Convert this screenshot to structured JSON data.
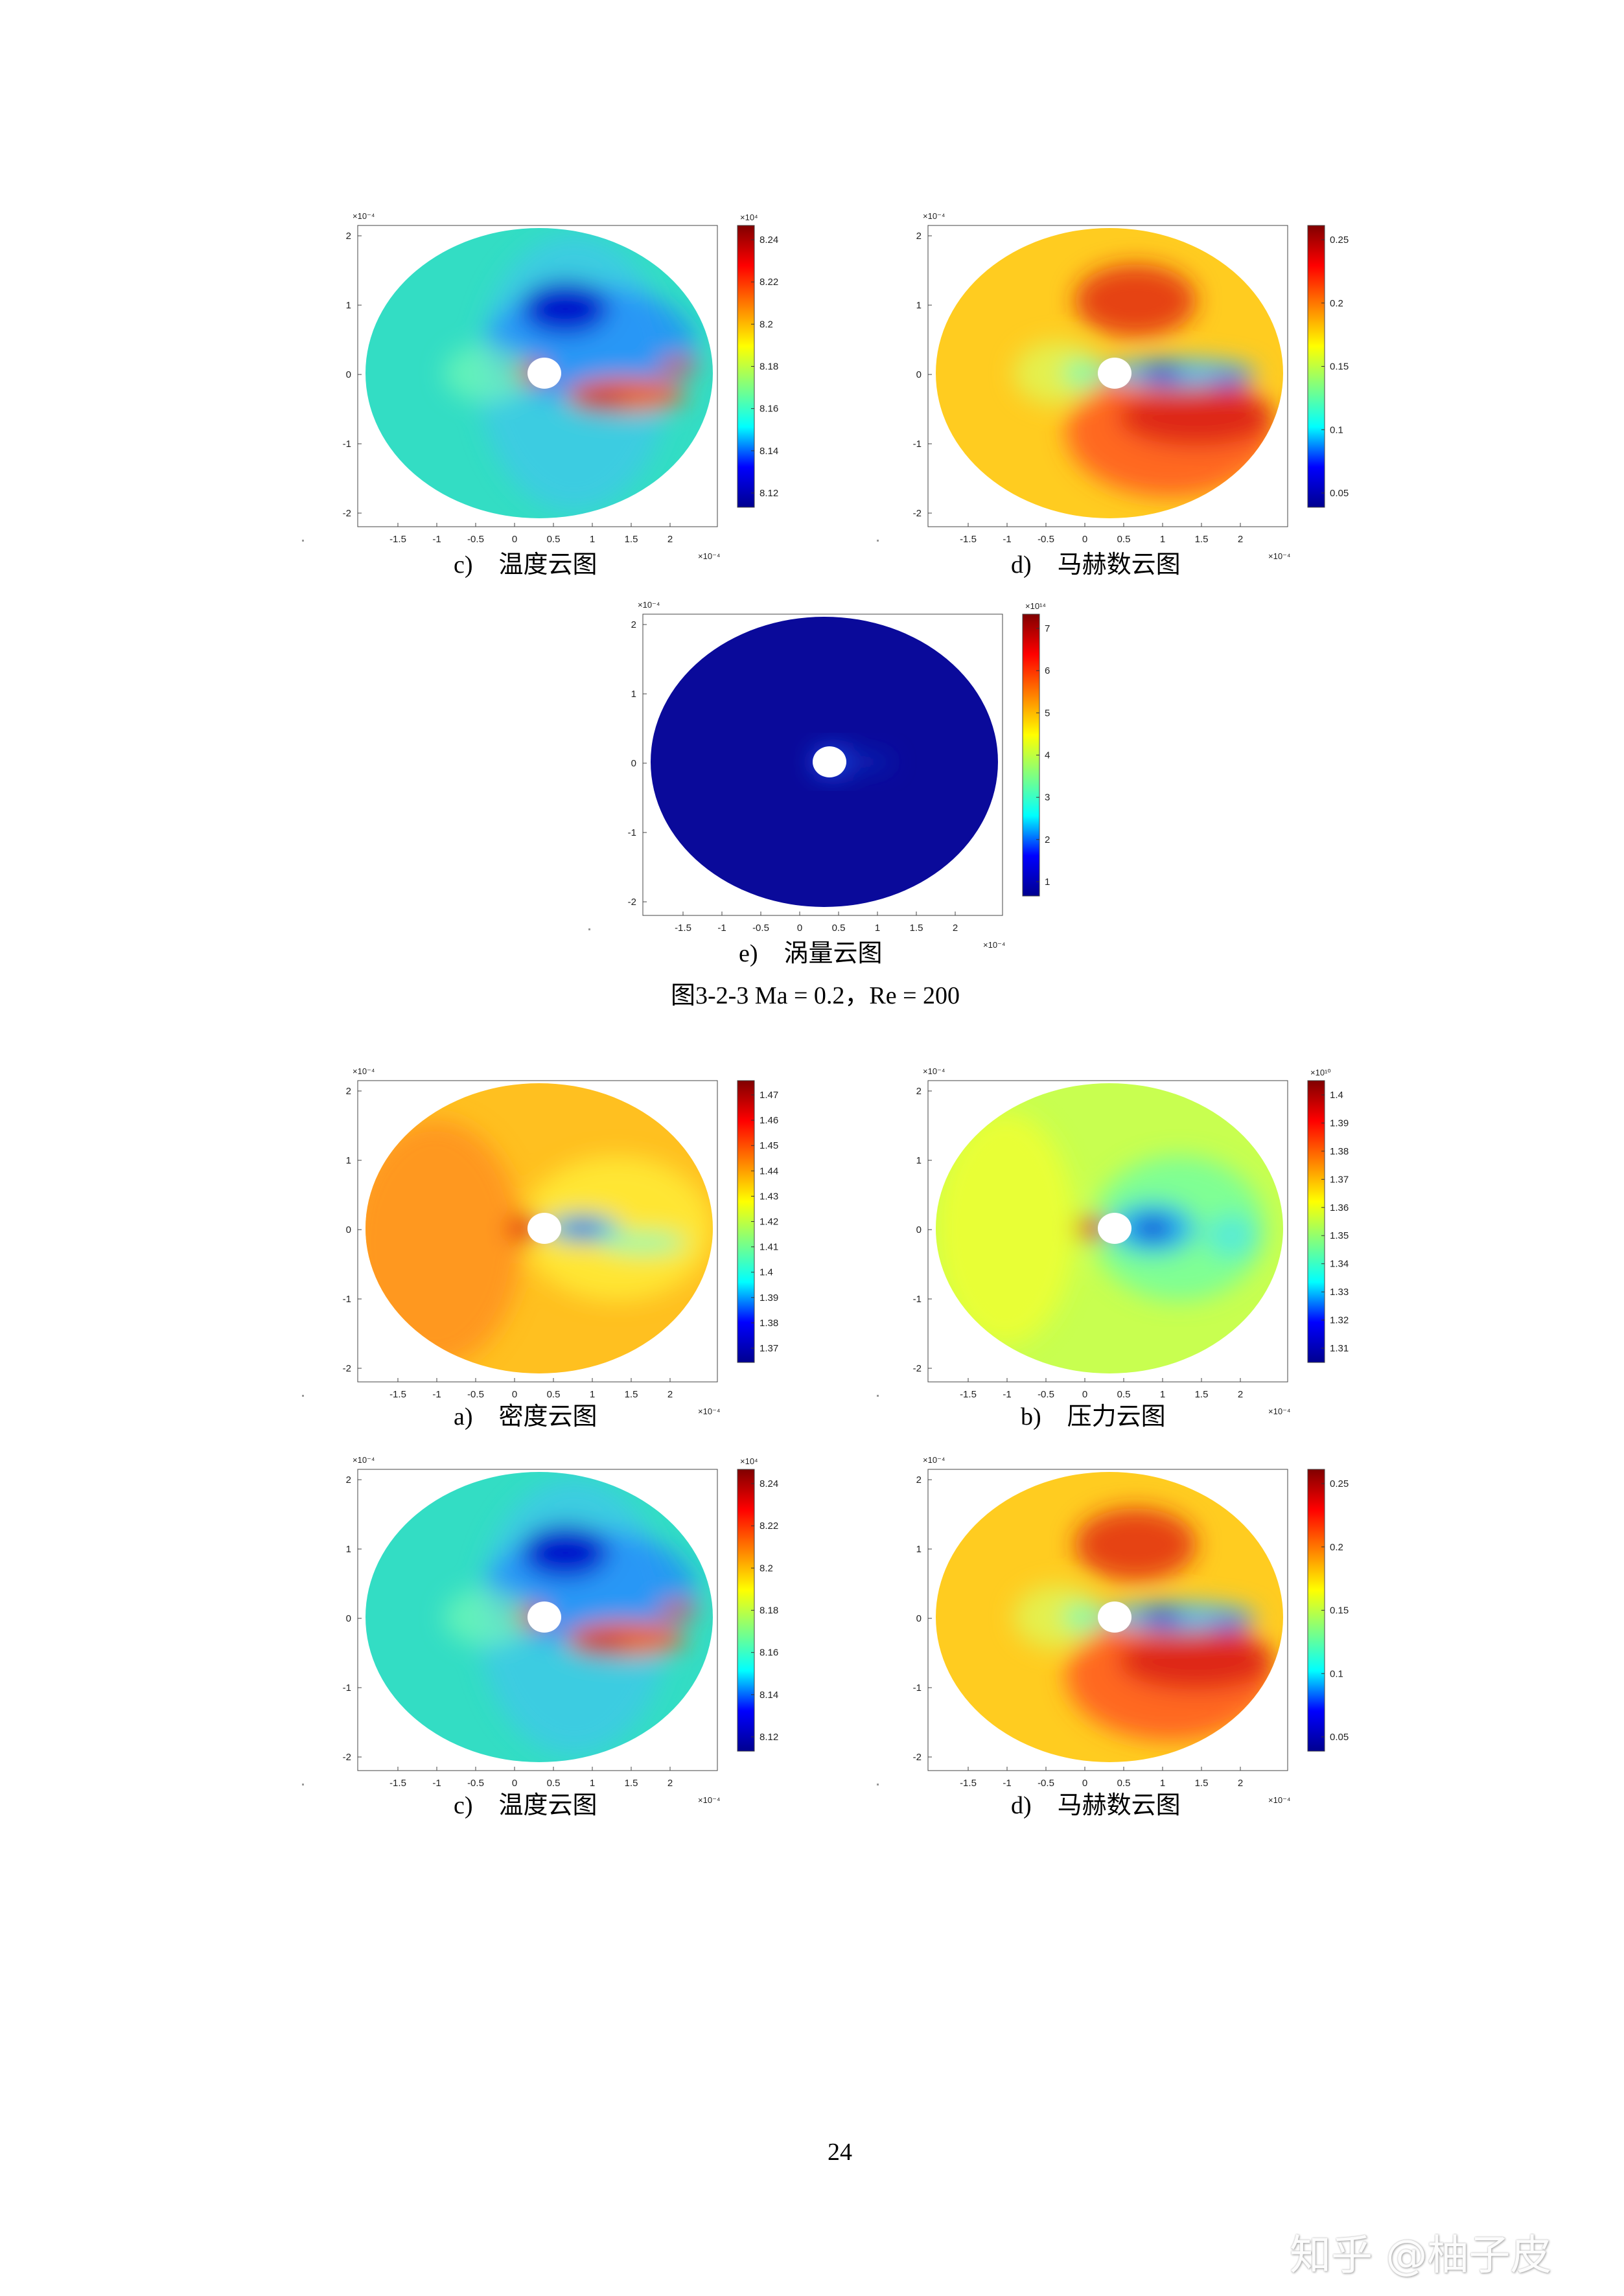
{
  "colors": {
    "jet": [
      "#00008f",
      "#0000ff",
      "#00ffff",
      "#80ff80",
      "#ffff00",
      "#ff8000",
      "#ff0000",
      "#800000"
    ]
  },
  "axis": {
    "x_ticks": [
      "-1.5",
      "-1",
      "-0.5",
      "0",
      "0.5",
      "1",
      "1.5",
      "2"
    ],
    "y_ticks": [
      "2",
      "1",
      "0",
      "-1",
      "-2"
    ],
    "x_exp": "×10⁻⁴",
    "y_exp": "×10⁻⁴"
  },
  "panels": [
    {
      "id": "temp-top",
      "caption_label": "c)",
      "caption_text": "温度云图",
      "colorbar_exp": "×10⁴",
      "colorbar_ticks": [
        "8.24",
        "8.22",
        "8.2",
        "8.18",
        "8.16",
        "8.14",
        "8.12"
      ],
      "field": "temperature"
    },
    {
      "id": "mach-top",
      "caption_label": "d)",
      "caption_text": "马赫数云图",
      "colorbar_exp": "",
      "colorbar_ticks": [
        "0.25",
        "0.2",
        "0.15",
        "0.1",
        "0.05"
      ],
      "field": "mach"
    },
    {
      "id": "vorticity",
      "caption_label": "e)",
      "caption_text": "涡量云图",
      "colorbar_exp": "×10¹⁴",
      "colorbar_ticks": [
        "7",
        "6",
        "5",
        "4",
        "3",
        "2",
        "1"
      ],
      "field": "vorticity"
    },
    {
      "id": "density",
      "caption_label": "a)",
      "caption_text": "密度云图",
      "colorbar_exp": "",
      "colorbar_ticks": [
        "1.47",
        "1.46",
        "1.45",
        "1.44",
        "1.43",
        "1.42",
        "1.41",
        "1.4",
        "1.39",
        "1.38",
        "1.37"
      ],
      "field": "density"
    },
    {
      "id": "pressure",
      "caption_label": "b)",
      "caption_text": "压力云图",
      "colorbar_exp": "×10¹⁰",
      "colorbar_ticks": [
        "1.4",
        "1.39",
        "1.38",
        "1.37",
        "1.36",
        "1.35",
        "1.34",
        "1.33",
        "1.32",
        "1.31"
      ],
      "field": "pressure"
    },
    {
      "id": "temp-bottom",
      "caption_label": "c)",
      "caption_text": "温度云图",
      "colorbar_exp": "×10⁴",
      "colorbar_ticks": [
        "8.24",
        "8.22",
        "8.2",
        "8.18",
        "8.16",
        "8.14",
        "8.12"
      ],
      "field": "temperature"
    },
    {
      "id": "mach-bottom",
      "caption_label": "d)",
      "caption_text": "马赫数云图",
      "colorbar_exp": "",
      "colorbar_ticks": [
        "0.25",
        "0.2",
        "0.15",
        "0.1",
        "0.05"
      ],
      "field": "mach"
    }
  ],
  "figure_title": "图3-2-3 Ma = 0.2，Re = 200",
  "page_number": "24",
  "watermark": "知乎 @柚子皮"
}
